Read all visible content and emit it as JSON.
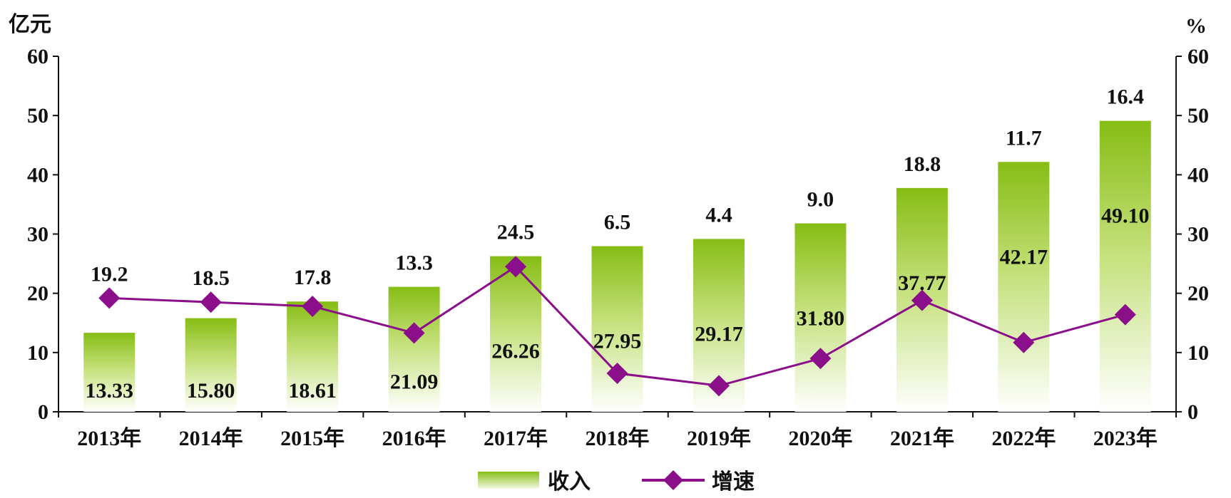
{
  "chart_data": {
    "type": "bar",
    "categories": [
      "2013年",
      "2014年",
      "2015年",
      "2016年",
      "2017年",
      "2018年",
      "2019年",
      "2020年",
      "2021年",
      "2022年",
      "2023年"
    ],
    "series": [
      {
        "name": "收入",
        "type": "bar",
        "axis": "left",
        "values": [
          13.33,
          15.8,
          18.61,
          21.09,
          26.26,
          27.95,
          29.17,
          31.8,
          37.77,
          42.17,
          49.1
        ],
        "labels": [
          "13.33",
          "15.80",
          "18.61",
          "21.09",
          "26.26",
          "27.95",
          "29.17",
          "31.80",
          "37.77",
          "42.17",
          "49.10"
        ],
        "color": "#8dc21f"
      },
      {
        "name": "增速",
        "type": "line",
        "axis": "right",
        "values": [
          19.2,
          18.5,
          17.8,
          13.3,
          24.5,
          6.5,
          4.4,
          9.0,
          18.8,
          11.7,
          16.4
        ],
        "labels": [
          "19.2",
          "18.5",
          "17.8",
          "13.3",
          "24.5",
          "6.5",
          "4.4",
          "9.0",
          "18.8",
          "11.7",
          "16.4"
        ],
        "color": "#8b0f8a"
      }
    ],
    "y_left": {
      "unit": "亿元",
      "ylim": [
        0,
        60
      ],
      "ticks": [
        "0",
        "10",
        "20",
        "30",
        "40",
        "50",
        "60"
      ]
    },
    "y_right": {
      "unit": "%",
      "ylim": [
        0,
        60
      ],
      "ticks": [
        "0",
        "10",
        "20",
        "30",
        "40",
        "50",
        "60"
      ]
    },
    "grid": false,
    "legend": {
      "position": "bottom",
      "items": [
        "收入",
        "增速"
      ]
    }
  }
}
